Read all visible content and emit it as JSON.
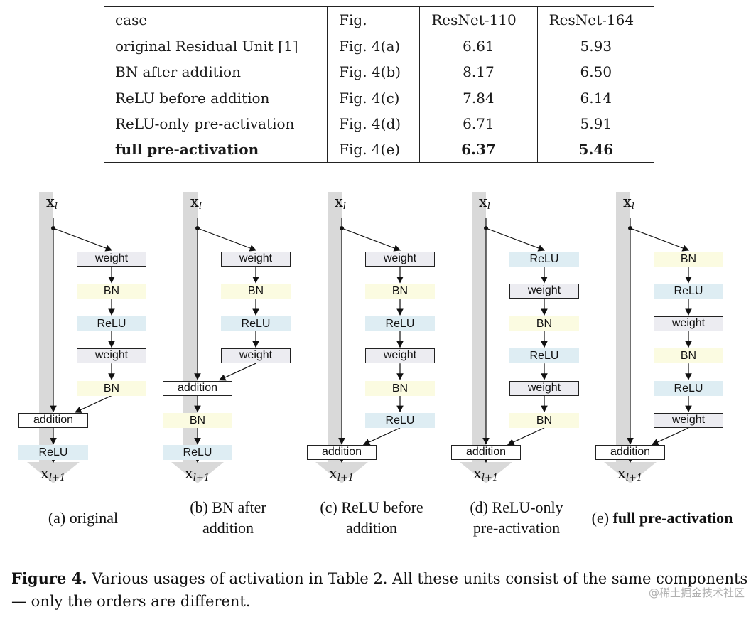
{
  "table": {
    "headers": [
      "case",
      "Fig.",
      "ResNet-110",
      "ResNet-164"
    ],
    "rows": [
      {
        "case": "original Residual Unit [1]",
        "fig": "Fig. 4(a)",
        "resnet110": "6.61",
        "resnet164": "5.93"
      },
      {
        "case": "BN after addition",
        "fig": "Fig. 4(b)",
        "resnet110": "8.17",
        "resnet164": "6.50"
      },
      {
        "case": "ReLU before addition",
        "fig": "Fig. 4(c)",
        "resnet110": "7.84",
        "resnet164": "6.14"
      },
      {
        "case": "ReLU-only pre-activation",
        "fig": "Fig. 4(d)",
        "resnet110": "6.71",
        "resnet164": "5.91"
      },
      {
        "case": "full pre-activation",
        "fig": "Fig. 4(e)",
        "resnet110": "6.37",
        "resnet164": "5.46"
      }
    ]
  },
  "diagrams": [
    {
      "input_base": "x",
      "input_sub": "l",
      "output_base": "x",
      "output_sub": "l+1",
      "caption_line1": "(a) original",
      "caption_line2": "",
      "branch": [
        "weight",
        "BN",
        "ReLU",
        "weight",
        "BN"
      ],
      "addition": "addition",
      "post": [
        "ReLU"
      ]
    },
    {
      "input_base": "x",
      "input_sub": "l",
      "output_base": "x",
      "output_sub": "l+1",
      "caption_line1": "(b) BN after",
      "caption_line2": "addition",
      "branch": [
        "weight",
        "BN",
        "ReLU",
        "weight"
      ],
      "addition": "addition",
      "post": [
        "BN",
        "ReLU"
      ]
    },
    {
      "input_base": "x",
      "input_sub": "l",
      "output_base": "x",
      "output_sub": "l+1",
      "caption_line1": "(c) ReLU before",
      "caption_line2": "addition",
      "branch": [
        "weight",
        "BN",
        "ReLU",
        "weight",
        "BN",
        "ReLU"
      ],
      "addition": "addition",
      "post": []
    },
    {
      "input_base": "x",
      "input_sub": "l",
      "output_base": "x",
      "output_sub": "l+1",
      "caption_line1": "(d) ReLU-only",
      "caption_line2": "pre-activation",
      "branch": [
        "ReLU",
        "weight",
        "BN",
        "ReLU",
        "weight",
        "BN"
      ],
      "addition": "addition",
      "post": []
    },
    {
      "input_base": "x",
      "input_sub": "l",
      "output_base": "x",
      "output_sub": "l+1",
      "caption_prefix": "(e) ",
      "caption_bold": "full pre-activation",
      "branch": [
        "BN",
        "ReLU",
        "weight",
        "BN",
        "ReLU",
        "weight"
      ],
      "addition": "addition",
      "post": []
    }
  ],
  "figure_caption": {
    "label": "Figure 4.",
    "text": " Various usages of activation in Table 2. All these units consist of the same components — only the orders are different."
  },
  "watermark": "@稀土掘金技术社区",
  "colors": {
    "weight": "#ececf1",
    "bn": "#fbfbe1",
    "relu": "#deedf3",
    "trunk": "#d9d9d9"
  }
}
